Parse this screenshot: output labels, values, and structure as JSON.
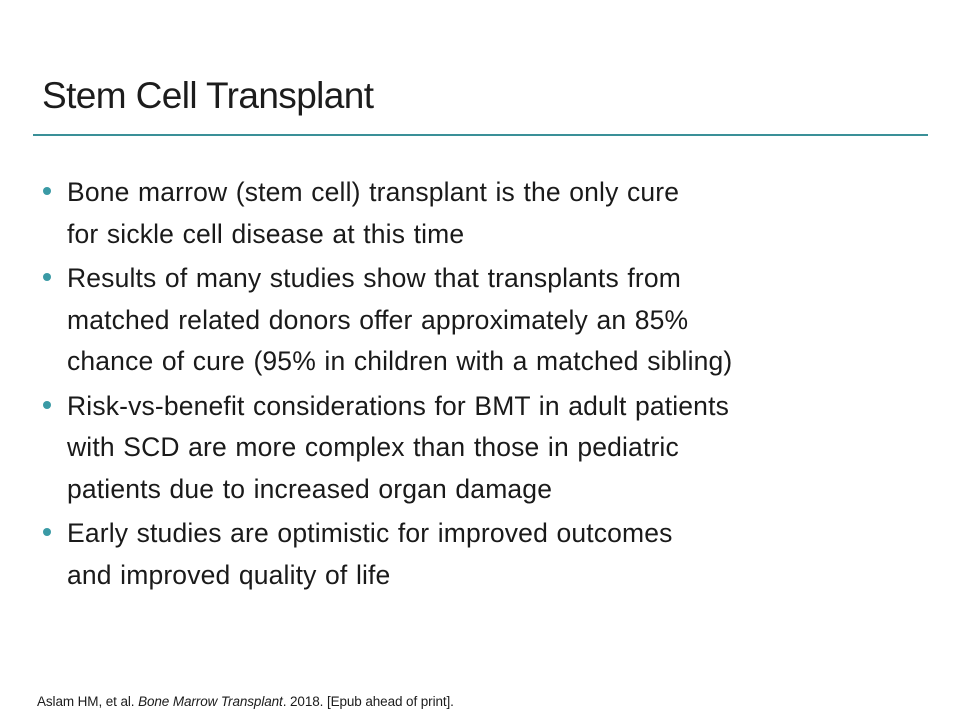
{
  "slide": {
    "title": "Stem Cell Transplant",
    "accent_color": "#3a9098",
    "bullet_color": "#3a9aa5",
    "bullets": [
      {
        "text": "Bone marrow (stem cell) transplant is the only cure\nfor sickle cell disease at this time"
      },
      {
        "text": "Results of many studies show that transplants from\nmatched related donors offer approximately an 85%\nchance of cure (95% in children with a matched sibling)"
      },
      {
        "text": "Risk-vs-benefit considerations for BMT in adult patients\nwith SCD are more complex than those in pediatric\npatients due to increased organ damage"
      },
      {
        "text": "Early studies are optimistic for improved outcomes\nand improved quality of life"
      }
    ],
    "citation": {
      "authors": "Aslam HM, et al. ",
      "journal": "Bone Marrow Transplant",
      "rest": ". 2018. [Epub ahead of print]."
    }
  }
}
